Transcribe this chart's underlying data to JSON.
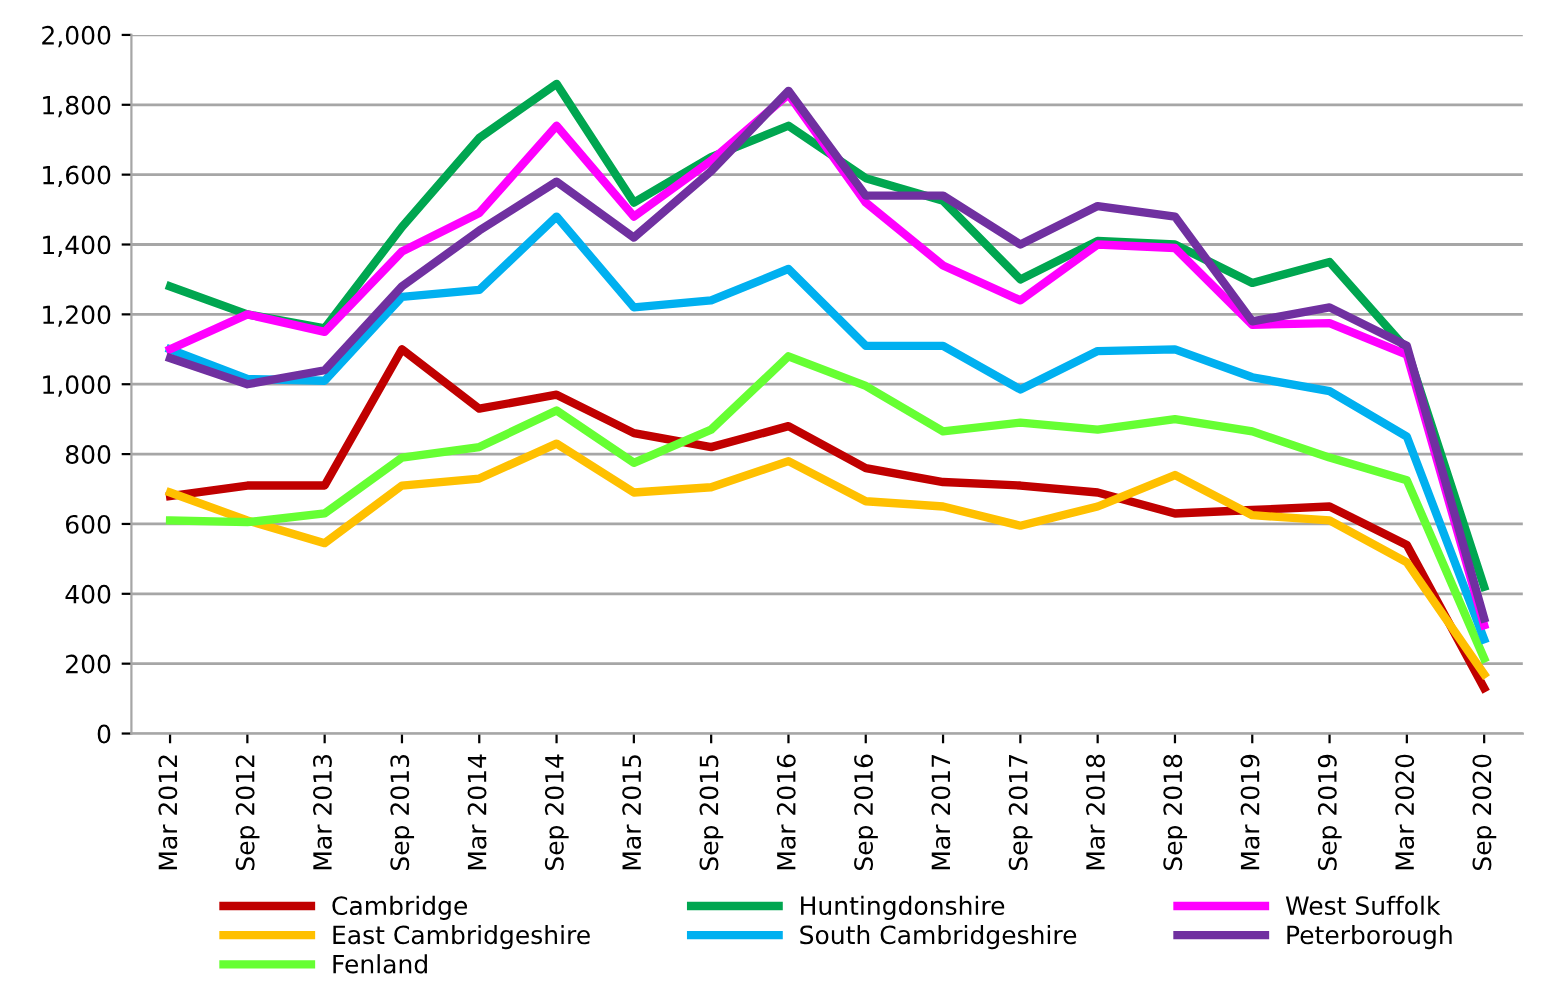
{
  "chart_data": {
    "type": "line",
    "categories": [
      "Mar 2012",
      "Sep 2012",
      "Mar 2013",
      "Sep 2013",
      "Mar 2014",
      "Sep 2014",
      "Mar 2015",
      "Sep 2015",
      "Mar 2016",
      "Sep 2016",
      "Mar 2017",
      "Sep 2017",
      "Mar 2018",
      "Sep 2018",
      "Mar 2019",
      "Sep 2019",
      "Mar 2020",
      "Sep 2020"
    ],
    "series": [
      {
        "name": "Cambridge",
        "color": "#c00000",
        "values": [
          680,
          710,
          710,
          1100,
          930,
          970,
          860,
          820,
          880,
          760,
          720,
          710,
          690,
          630,
          640,
          650,
          540,
          130
        ]
      },
      {
        "name": "East Cambridgeshire",
        "color": "#ffc000",
        "values": [
          690,
          610,
          545,
          710,
          730,
          830,
          690,
          705,
          780,
          665,
          650,
          595,
          650,
          740,
          625,
          610,
          490,
          170
        ]
      },
      {
        "name": "Fenland",
        "color": "#66ff33",
        "values": [
          610,
          605,
          630,
          790,
          820,
          925,
          775,
          870,
          1080,
          995,
          865,
          890,
          870,
          900,
          865,
          790,
          725,
          215
        ]
      },
      {
        "name": "Huntingdonshire",
        "color": "#00a650",
        "values": [
          1280,
          1200,
          1160,
          1450,
          1705,
          1860,
          1520,
          1650,
          1740,
          1590,
          1525,
          1300,
          1410,
          1400,
          1290,
          1350,
          1100,
          420
        ]
      },
      {
        "name": "South Cambridgeshire",
        "color": "#00b0f0",
        "values": [
          1100,
          1015,
          1010,
          1250,
          1270,
          1480,
          1220,
          1240,
          1330,
          1110,
          1110,
          985,
          1095,
          1100,
          1020,
          980,
          850,
          270
        ]
      },
      {
        "name": "West Suffolk",
        "color": "#ff00ff",
        "values": [
          1100,
          1200,
          1150,
          1380,
          1490,
          1740,
          1480,
          1640,
          1830,
          1520,
          1340,
          1240,
          1400,
          1390,
          1170,
          1175,
          1085,
          310
        ]
      },
      {
        "name": "Peterborough",
        "color": "#7030a0",
        "values": [
          1075,
          1000,
          1040,
          1280,
          1440,
          1580,
          1420,
          1610,
          1840,
          1540,
          1540,
          1400,
          1510,
          1480,
          1180,
          1220,
          1110,
          330
        ]
      }
    ],
    "ylim": [
      0,
      2000
    ],
    "yticks": [
      {
        "value": 0,
        "label": "0"
      },
      {
        "value": 200,
        "label": "200"
      },
      {
        "value": 400,
        "label": "400"
      },
      {
        "value": 600,
        "label": "600"
      },
      {
        "value": 800,
        "label": "800"
      },
      {
        "value": 1000,
        "label": "1,000"
      },
      {
        "value": 1200,
        "label": "1,200"
      },
      {
        "value": 1400,
        "label": "1,400"
      },
      {
        "value": 1600,
        "label": "1,600"
      },
      {
        "value": 1800,
        "label": "1,800"
      },
      {
        "value": 2000,
        "label": "2,000"
      }
    ],
    "grid": "y",
    "legend": "bottom",
    "marker": "none",
    "line_style": "solid"
  }
}
